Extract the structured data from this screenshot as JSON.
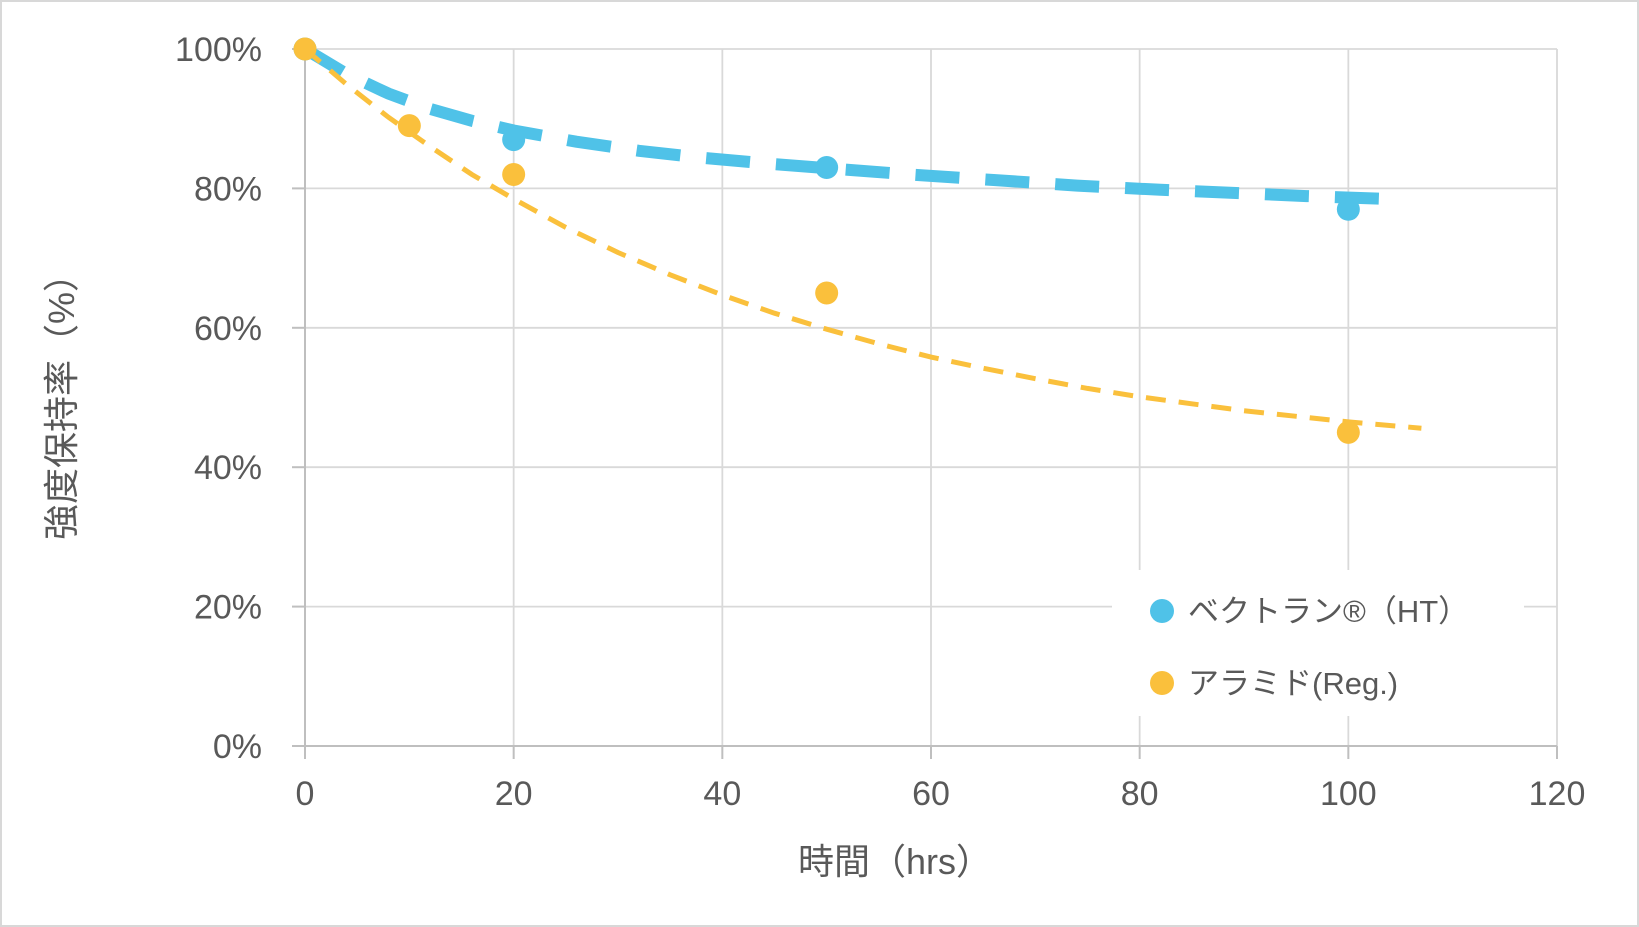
{
  "chart_data": {
    "type": "scatter",
    "title": "",
    "xlabel": "時間（hrs）",
    "ylabel": "強度保持率（%）",
    "xlim": [
      0,
      120
    ],
    "ylim": [
      0,
      100
    ],
    "x_ticks": [
      0,
      20,
      40,
      60,
      80,
      100,
      120
    ],
    "y_ticks": [
      0,
      20,
      40,
      60,
      80,
      100
    ],
    "y_tick_suffix": "%",
    "grid": true,
    "legend_position": "inside-right-middle",
    "colors": {
      "grid": "#d9d9d9",
      "axis": "#bfbfbf",
      "text": "#595959",
      "background": "#ffffff"
    },
    "series": [
      {
        "name": "ベクトラン®（HT）",
        "color": "#4FC2E8",
        "marker": "circle",
        "line_style": "dashed-thick",
        "points": [
          [
            0,
            100
          ],
          [
            20,
            87
          ],
          [
            50,
            83
          ],
          [
            100,
            77
          ]
        ],
        "trendline": [
          [
            0,
            100
          ],
          [
            4,
            96.4
          ],
          [
            8,
            93.6
          ],
          [
            12,
            91.4
          ],
          [
            16,
            89.7
          ],
          [
            20,
            88.3
          ],
          [
            26,
            86.7
          ],
          [
            32,
            85.4
          ],
          [
            38,
            84.4
          ],
          [
            44,
            83.6
          ],
          [
            50,
            82.9
          ],
          [
            58,
            82.0
          ],
          [
            66,
            81.2
          ],
          [
            74,
            80.4
          ],
          [
            82,
            79.8
          ],
          [
            90,
            79.3
          ],
          [
            96,
            78.9
          ],
          [
            103.5,
            78.5
          ]
        ]
      },
      {
        "name": "アラミド(Reg.)",
        "color": "#FAC03C",
        "marker": "circle",
        "line_style": "dashed-thin",
        "points": [
          [
            0,
            100
          ],
          [
            10,
            89
          ],
          [
            20,
            82
          ],
          [
            50,
            65
          ],
          [
            100,
            45
          ]
        ],
        "trendline": [
          [
            0,
            100
          ],
          [
            4,
            94.9
          ],
          [
            8,
            90.2
          ],
          [
            12,
            86.0
          ],
          [
            16,
            82.0
          ],
          [
            20,
            78.5
          ],
          [
            25,
            74.4
          ],
          [
            30,
            70.8
          ],
          [
            35,
            67.6
          ],
          [
            40,
            64.7
          ],
          [
            45,
            62.1
          ],
          [
            50,
            59.8
          ],
          [
            55,
            57.7
          ],
          [
            60,
            55.8
          ],
          [
            65,
            54.2
          ],
          [
            70,
            52.7
          ],
          [
            75,
            51.3
          ],
          [
            80,
            50.1
          ],
          [
            85,
            49.1
          ],
          [
            90,
            48.1
          ],
          [
            95,
            47.3
          ],
          [
            100,
            46.5
          ],
          [
            107,
            45.6
          ]
        ]
      }
    ]
  }
}
